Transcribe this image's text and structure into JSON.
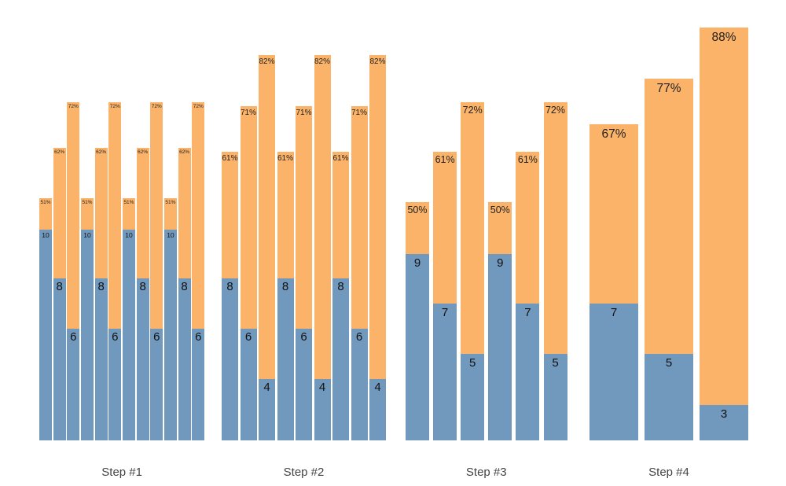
{
  "chart_data": {
    "type": "bar",
    "stacked": true,
    "orientation": "vertical",
    "title": "",
    "xlabel": "",
    "ylabel": "",
    "grid": false,
    "legend": "none",
    "background": "#FFFFFF",
    "colors": {
      "bottom_segment": "#7198BD",
      "top_segment": "#FAB369",
      "label_text": "#222222",
      "axis_text": "#444444"
    },
    "x_axis_labels": [
      "Step #1",
      "Step #2",
      "Step #3",
      "Step #4"
    ],
    "groups": [
      {
        "label": "Step #1",
        "bars": [
          {
            "bottom_value": 10,
            "top_pct": 51,
            "top_label": "51%"
          },
          {
            "bottom_value": 8,
            "top_pct": 62,
            "top_label": "62%"
          },
          {
            "bottom_value": 6,
            "top_pct": 72,
            "top_label": "72%"
          },
          {
            "bottom_value": 10,
            "top_pct": 51,
            "top_label": "51%"
          },
          {
            "bottom_value": 8,
            "top_pct": 62,
            "top_label": "62%"
          },
          {
            "bottom_value": 6,
            "top_pct": 72,
            "top_label": "72%"
          },
          {
            "bottom_value": 10,
            "top_pct": 51,
            "top_label": "51%"
          },
          {
            "bottom_value": 8,
            "top_pct": 62,
            "top_label": "62%"
          },
          {
            "bottom_value": 6,
            "top_pct": 72,
            "top_label": "72%"
          },
          {
            "bottom_value": 10,
            "top_pct": 51,
            "top_label": "51%"
          },
          {
            "bottom_value": 8,
            "top_pct": 62,
            "top_label": "62%"
          },
          {
            "bottom_value": 6,
            "top_pct": 72,
            "top_label": "72%"
          }
        ]
      },
      {
        "label": "Step #2",
        "bars": [
          {
            "bottom_value": 8,
            "top_pct": 61,
            "top_label": "61%"
          },
          {
            "bottom_value": 6,
            "top_pct": 71,
            "top_label": "71%"
          },
          {
            "bottom_value": 4,
            "top_pct": 82,
            "top_label": "82%"
          },
          {
            "bottom_value": 8,
            "top_pct": 61,
            "top_label": "61%"
          },
          {
            "bottom_value": 6,
            "top_pct": 71,
            "top_label": "71%"
          },
          {
            "bottom_value": 4,
            "top_pct": 82,
            "top_label": "82%"
          },
          {
            "bottom_value": 8,
            "top_pct": 61,
            "top_label": "61%"
          },
          {
            "bottom_value": 6,
            "top_pct": 71,
            "top_label": "71%"
          },
          {
            "bottom_value": 4,
            "top_pct": 82,
            "top_label": "82%"
          }
        ]
      },
      {
        "label": "Step #3",
        "bars": [
          {
            "bottom_value": 9,
            "top_pct": 50,
            "top_label": "50%"
          },
          {
            "bottom_value": 7,
            "top_pct": 61,
            "top_label": "61%"
          },
          {
            "bottom_value": 5,
            "top_pct": 72,
            "top_label": "72%"
          },
          {
            "bottom_value": 9,
            "top_pct": 50,
            "top_label": "50%"
          },
          {
            "bottom_value": 7,
            "top_pct": 61,
            "top_label": "61%"
          },
          {
            "bottom_value": 5,
            "top_pct": 72,
            "top_label": "72%"
          }
        ]
      },
      {
        "label": "Step #4",
        "bars": [
          {
            "bottom_value": 7,
            "top_pct": 67,
            "top_label": "67%"
          },
          {
            "bottom_value": 5,
            "top_pct": 77,
            "top_label": "77%"
          },
          {
            "bottom_value": 3,
            "top_pct": 88,
            "top_label": "88%"
          }
        ]
      }
    ]
  }
}
